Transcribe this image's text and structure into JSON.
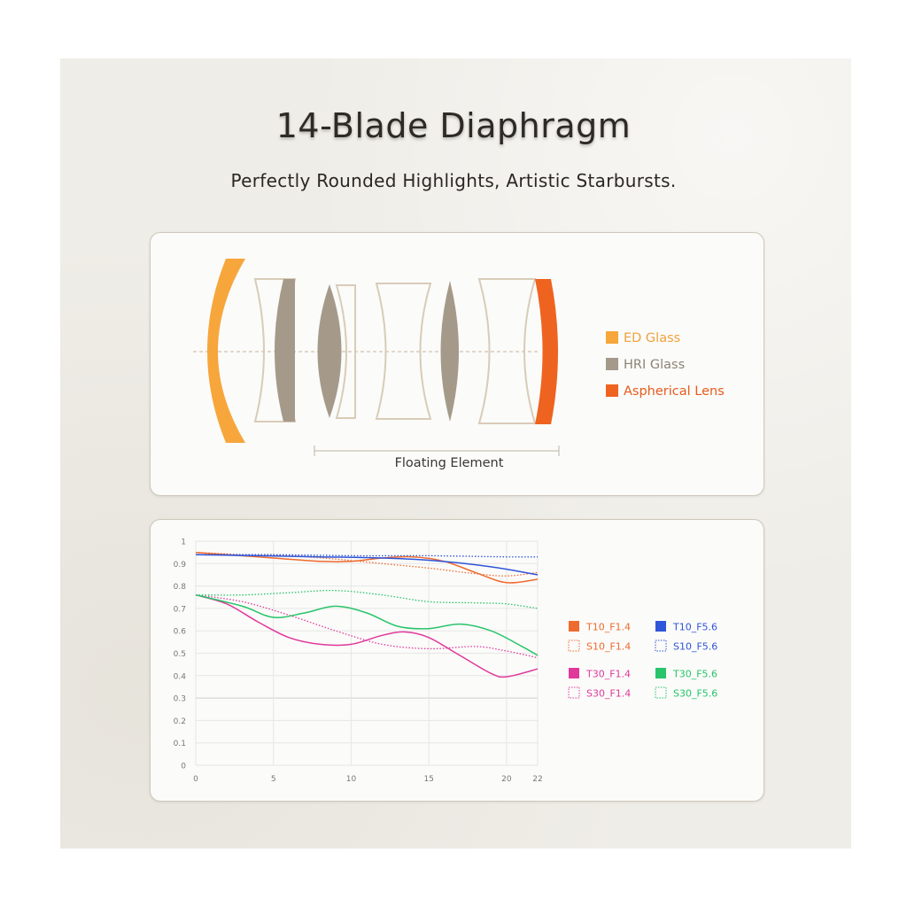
{
  "header": {
    "title": "14-Blade Diaphragm",
    "subtitle": "Perfectly Rounded Highlights, Artistic Starbursts."
  },
  "lens_diagram": {
    "legend": [
      {
        "label": "ED Glass",
        "color": "#f7a63c"
      },
      {
        "label": "HRI Glass",
        "color": "#a59a8a"
      },
      {
        "label": "Aspherical Lens",
        "color": "#ef6320"
      }
    ],
    "bracket_label": "Floating Element",
    "outline_color": "#d8ccb8"
  },
  "chart_data": {
    "type": "line",
    "title": "",
    "xlabel": "",
    "ylabel": "",
    "xlim": [
      0,
      22
    ],
    "ylim": [
      0,
      1
    ],
    "x_ticks": [
      "0",
      "5",
      "10",
      "15",
      "20",
      "22"
    ],
    "x_tick_values": [
      0,
      5,
      10,
      15,
      20,
      22
    ],
    "y_ticks": [
      "1",
      "0.9",
      "0.8",
      "0.7",
      "0.6",
      "0.5",
      "0.4",
      "0.3",
      "0.2",
      "0.1",
      "0"
    ],
    "y_tick_values": [
      1,
      0.9,
      0.8,
      0.7,
      0.6,
      0.5,
      0.4,
      0.3,
      0.2,
      0.1,
      0
    ],
    "grid": true,
    "legend_position": "right",
    "series": [
      {
        "name": "T10_F1.4",
        "color": "#ef6a2e",
        "style": "solid",
        "x": [
          0,
          2,
          5,
          8,
          10,
          12,
          14,
          16,
          18,
          20,
          22
        ],
        "y": [
          0.95,
          0.94,
          0.925,
          0.91,
          0.91,
          0.925,
          0.93,
          0.91,
          0.86,
          0.815,
          0.83
        ]
      },
      {
        "name": "S10_F1.4",
        "color": "#ef6a2e",
        "style": "dotted",
        "x": [
          0,
          3,
          6,
          9,
          12,
          15,
          18,
          20,
          22
        ],
        "y": [
          0.95,
          0.94,
          0.935,
          0.92,
          0.9,
          0.88,
          0.855,
          0.845,
          0.86
        ]
      },
      {
        "name": "T10_F5.6",
        "color": "#2f55d9",
        "style": "solid",
        "x": [
          0,
          4,
          8,
          12,
          15,
          18,
          20,
          22
        ],
        "y": [
          0.94,
          0.935,
          0.93,
          0.925,
          0.915,
          0.895,
          0.875,
          0.85
        ]
      },
      {
        "name": "S10_F5.6",
        "color": "#2f55d9",
        "style": "dotted",
        "x": [
          0,
          5,
          10,
          15,
          20,
          22
        ],
        "y": [
          0.94,
          0.94,
          0.935,
          0.935,
          0.93,
          0.93
        ]
      },
      {
        "name": "T30_F1.4",
        "color": "#e0399b",
        "style": "solid",
        "x": [
          0,
          2,
          4,
          6,
          8,
          10,
          12,
          13.5,
          15,
          17,
          19,
          20,
          22
        ],
        "y": [
          0.76,
          0.72,
          0.64,
          0.57,
          0.54,
          0.54,
          0.58,
          0.595,
          0.57,
          0.49,
          0.41,
          0.395,
          0.43
        ]
      },
      {
        "name": "S30_F1.4",
        "color": "#e0399b",
        "style": "dotted",
        "x": [
          0,
          3,
          6,
          9,
          12,
          15,
          18,
          20,
          22
        ],
        "y": [
          0.76,
          0.73,
          0.67,
          0.6,
          0.54,
          0.52,
          0.53,
          0.51,
          0.48
        ]
      },
      {
        "name": "T30_F5.6",
        "color": "#27c46a",
        "style": "solid",
        "x": [
          0,
          3,
          5,
          7,
          9,
          11,
          13,
          15,
          17,
          19,
          21,
          22
        ],
        "y": [
          0.76,
          0.71,
          0.66,
          0.68,
          0.71,
          0.68,
          0.62,
          0.61,
          0.63,
          0.6,
          0.53,
          0.49
        ]
      },
      {
        "name": "S30_F5.6",
        "color": "#27c46a",
        "style": "dotted",
        "x": [
          0,
          3,
          6,
          9,
          12,
          15,
          18,
          20,
          22
        ],
        "y": [
          0.76,
          0.76,
          0.77,
          0.78,
          0.76,
          0.73,
          0.725,
          0.72,
          0.7
        ]
      }
    ]
  }
}
